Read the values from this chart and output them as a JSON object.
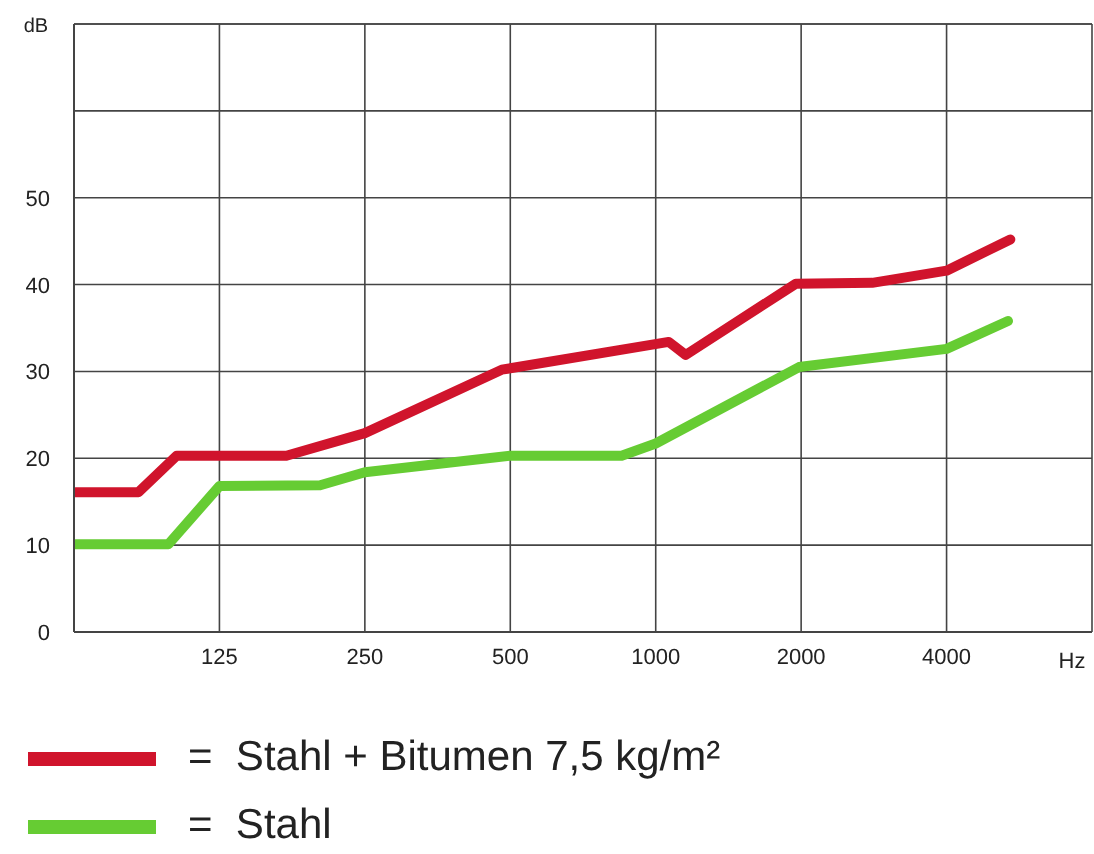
{
  "chart_data": {
    "type": "line",
    "ylabel": "dB",
    "xlabel": "Hz",
    "log": "x",
    "xlim": [
      62.5,
      8000
    ],
    "xticks": [
      125,
      250,
      500,
      1000,
      2000,
      4000
    ],
    "ylim": [
      0,
      70
    ],
    "yticks": [
      0,
      10,
      20,
      30,
      40,
      50,
      {
        "value": 60,
        "label": null
      },
      {
        "value": 70,
        "label": null
      }
    ],
    "grid": true,
    "legend": "bottom",
    "marker": "none",
    "line_style": "solid",
    "series": [
      {
        "name": "=  Stahl + Bitumen 7,5 kg/m²",
        "color": "#d0142c",
        "x": [
          63,
          85,
          102,
          172,
          250,
          480,
          1064,
          1154,
          1950,
          2806,
          4000,
          5420
        ],
        "values": [
          16.1,
          16.1,
          20.3,
          20.3,
          22.9,
          30.2,
          33.4,
          31.9,
          40.1,
          40.2,
          41.6,
          45.2
        ]
      },
      {
        "name": "=  Stahl",
        "color": "#66cc33",
        "x": [
          63,
          98,
          125,
          202,
          250,
          500,
          850,
          1000,
          1980,
          4000,
          5360
        ],
        "values": [
          10.1,
          10.1,
          16.8,
          16.9,
          18.4,
          20.3,
          20.3,
          21.7,
          30.5,
          32.6,
          35.8
        ]
      }
    ]
  }
}
